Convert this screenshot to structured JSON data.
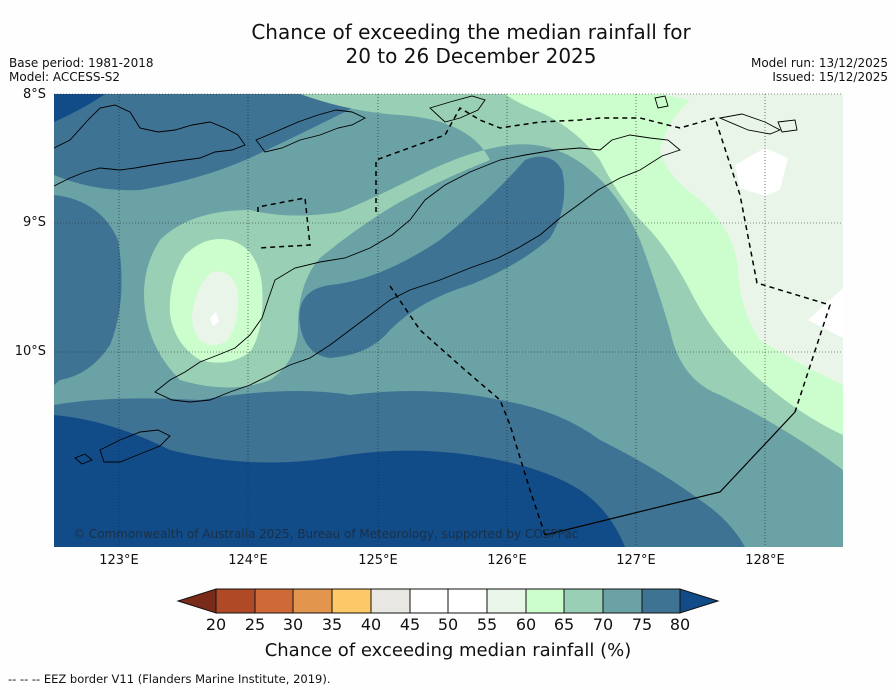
{
  "header": {
    "title_line1": "Chance of exceeding the median rainfall for",
    "title_line2": "20 to 26 December 2025",
    "base_period": "Base period: 1981-2018",
    "model": "Model: ACCESS-S2",
    "model_run": "Model run: 13/12/2025",
    "issued": "Issued: 15/12/2025"
  },
  "map": {
    "lat_labels": [
      "8°S",
      "9°S",
      "10°S"
    ],
    "lon_labels": [
      "123°E",
      "124°E",
      "125°E",
      "126°E",
      "127°E",
      "128°E"
    ],
    "copyright": "© Commonwealth of Australia 2025, Bureau of Meteorology, supported by COSPPac"
  },
  "colorbar": {
    "ticks": [
      "20",
      "25",
      "30",
      "35",
      "40",
      "45",
      "50",
      "55",
      "60",
      "65",
      "70",
      "75",
      "80"
    ],
    "label": "Chance of exceeding median rainfall (%)",
    "colors": [
      "#7a2a18",
      "#b04a26",
      "#cf6a36",
      "#e2954c",
      "#fdc968",
      "#e8e7e1",
      "#ffffff",
      "#ffffff",
      "#eaf5ea",
      "#ccfdcc",
      "#99cfb4",
      "#6aa2a5",
      "#3f7394",
      "#124c88"
    ]
  },
  "footer": {
    "legend": "--  --  -- EEZ border V11 (Flanders Marine Institute, 2019)."
  }
}
